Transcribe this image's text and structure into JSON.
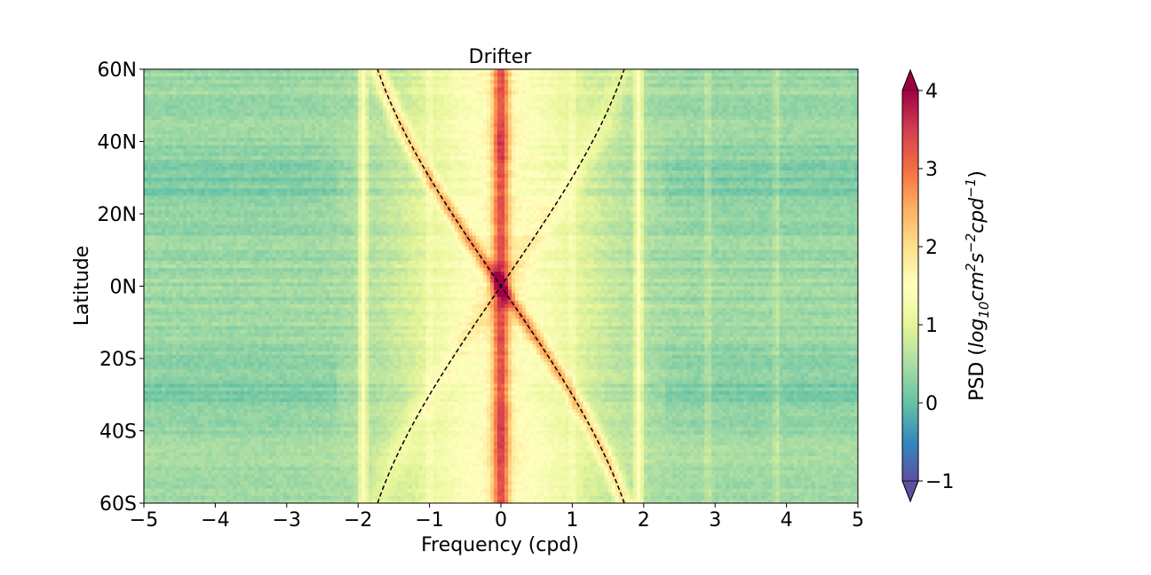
{
  "chart_data": {
    "type": "heatmap",
    "title": "Drifter",
    "xlabel": "Frequency (cpd)",
    "ylabel": "Latitude",
    "xlim": [
      -5,
      5
    ],
    "ylim": [
      -60,
      60
    ],
    "x_ticks": [
      {
        "value": -5,
        "label": "−5"
      },
      {
        "value": -4,
        "label": "−4"
      },
      {
        "value": -3,
        "label": "−3"
      },
      {
        "value": -2,
        "label": "−2"
      },
      {
        "value": -1,
        "label": "−1"
      },
      {
        "value": 0,
        "label": "0"
      },
      {
        "value": 1,
        "label": "1"
      },
      {
        "value": 2,
        "label": "2"
      },
      {
        "value": 3,
        "label": "3"
      },
      {
        "value": 4,
        "label": "4"
      },
      {
        "value": 5,
        "label": "5"
      }
    ],
    "y_ticks": [
      {
        "value": 60,
        "label": "60N"
      },
      {
        "value": 40,
        "label": "40N"
      },
      {
        "value": 20,
        "label": "20N"
      },
      {
        "value": 0,
        "label": "0N"
      },
      {
        "value": -20,
        "label": "20S"
      },
      {
        "value": -40,
        "label": "40S"
      },
      {
        "value": -60,
        "label": "60S"
      }
    ],
    "colorbar": {
      "label_text": "PSD (",
      "label_math": "log",
      "label_sub": "10",
      "label_unit1": "cm",
      "label_sup1": "2",
      "label_unit2": "s",
      "label_sup2": "−2",
      "label_unit3": "cpd",
      "label_sup3": "−1",
      "label_close": ")",
      "vmin": -1,
      "vmax": 4,
      "extend": "both",
      "colormap": "Spectral_r",
      "ticks": [
        {
          "value": -1,
          "label": "−1"
        },
        {
          "value": 0,
          "label": "0"
        },
        {
          "value": 1,
          "label": "1"
        },
        {
          "value": 2,
          "label": "2"
        },
        {
          "value": 3,
          "label": "3"
        },
        {
          "value": 4,
          "label": "4"
        }
      ],
      "colors": [
        "#5e4fa2",
        "#3288bd",
        "#66c2a5",
        "#abdda4",
        "#e6f598",
        "#ffffbf",
        "#fee08b",
        "#fdae61",
        "#f46d43",
        "#d53e4f",
        "#9e0142"
      ]
    },
    "spectral_features": {
      "background_level": 0.4,
      "low_frequency_peak": {
        "frequency_cpd": 0,
        "peak_level": 3.4
      },
      "tidal_lines_cpd": [
        -1.93,
        -1,
        1,
        1.93,
        2.9,
        3.86
      ],
      "inertial_curves": "f = ±2Ω sin(latitude)/2π (dashed)",
      "inertial_peak_side": "negative frequency in north, positive in south"
    }
  }
}
